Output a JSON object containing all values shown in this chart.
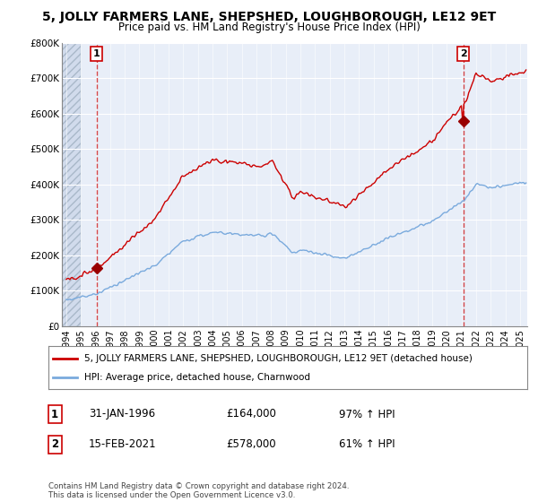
{
  "title": "5, JOLLY FARMERS LANE, SHEPSHED, LOUGHBOROUGH, LE12 9ET",
  "subtitle": "Price paid vs. HM Land Registry's House Price Index (HPI)",
  "ylim": [
    0,
    800000
  ],
  "xlim": [
    1993.7,
    2025.5
  ],
  "ytick_labels": [
    "£0",
    "£100K",
    "£200K",
    "£300K",
    "£400K",
    "£500K",
    "£600K",
    "£700K",
    "£800K"
  ],
  "ytick_values": [
    0,
    100000,
    200000,
    300000,
    400000,
    500000,
    600000,
    700000,
    800000
  ],
  "xtick_values": [
    1994,
    1995,
    1996,
    1997,
    1998,
    1999,
    2000,
    2001,
    2002,
    2003,
    2004,
    2005,
    2006,
    2007,
    2008,
    2009,
    2010,
    2011,
    2012,
    2013,
    2014,
    2015,
    2016,
    2017,
    2018,
    2019,
    2020,
    2021,
    2022,
    2023,
    2024,
    2025
  ],
  "sale1_year": 1996.08,
  "sale1_price": 164000,
  "sale1_label": "1",
  "sale1_date": "31-JAN-1996",
  "sale1_pct": "97% ↑ HPI",
  "sale2_year": 2021.12,
  "sale2_price": 578000,
  "sale2_label": "2",
  "sale2_date": "15-FEB-2021",
  "sale2_pct": "61% ↑ HPI",
  "hpi_color": "#7aaadd",
  "price_color": "#cc0000",
  "marker_color": "#990000",
  "legend_label1": "5, JOLLY FARMERS LANE, SHEPSHED, LOUGHBOROUGH, LE12 9ET (detached house)",
  "legend_label2": "HPI: Average price, detached house, Charnwood",
  "footer": "Contains HM Land Registry data © Crown copyright and database right 2024.\nThis data is licensed under the Open Government Licence v3.0.",
  "bg_color": "#e8eef8",
  "hatch_end": 1995.0
}
